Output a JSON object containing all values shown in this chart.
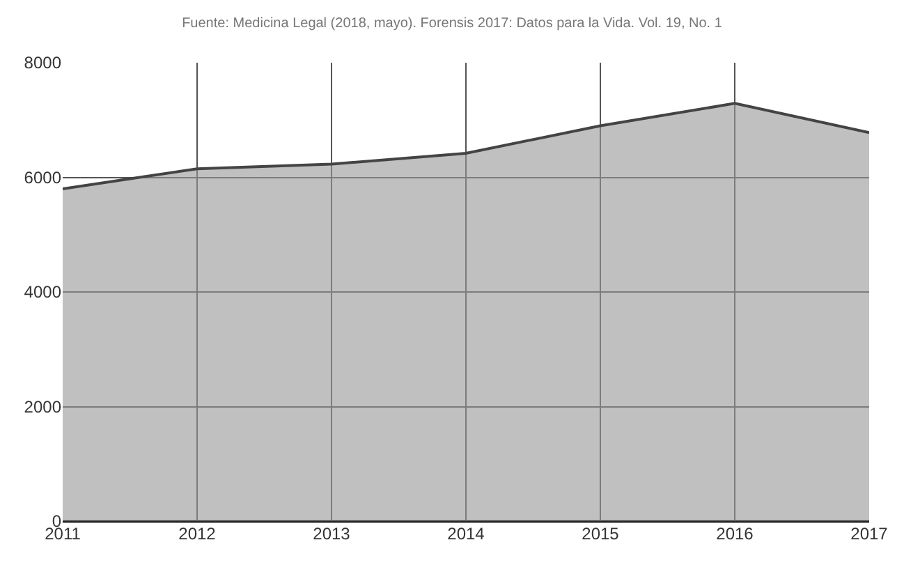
{
  "chart_data": {
    "type": "area",
    "subtitle": "Fuente: Medicina Legal (2018, mayo). Forensis 2017: Datos para la Vida. Vol. 19, No. 1",
    "x": [
      2011,
      2012,
      2013,
      2014,
      2015,
      2016,
      2017
    ],
    "series": [
      {
        "color": "#444444",
        "values": [
          5800,
          6150,
          6230,
          6420,
          6900,
          7290,
          6780
        ]
      }
    ],
    "xlim": [
      2011,
      2017
    ],
    "xticks": [
      2011,
      2012,
      2013,
      2014,
      2015,
      2016,
      2017
    ],
    "ylim": [
      0,
      8000
    ],
    "yticks": [
      0,
      2000,
      4000,
      6000,
      8000
    ],
    "grid": true
  }
}
